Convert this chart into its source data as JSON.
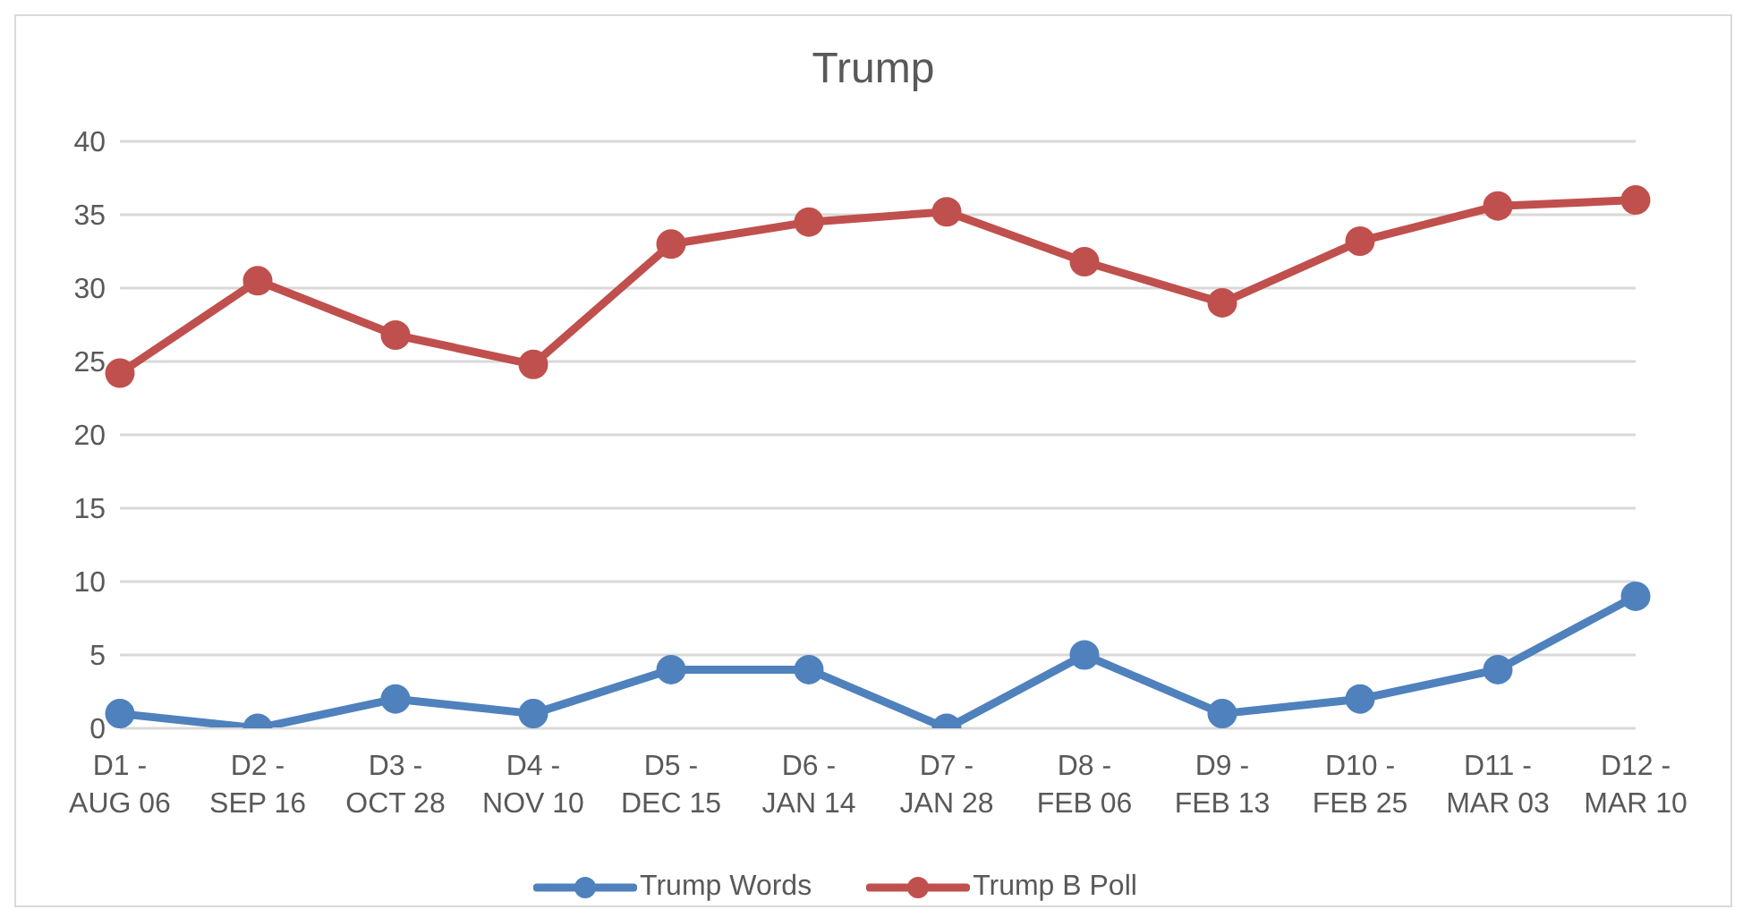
{
  "chart_data": {
    "type": "line",
    "title": "Trump",
    "categories": [
      "D1 - AUG 06",
      "D2 - SEP 16",
      "D3 - OCT 28",
      "D4 - NOV 10",
      "D5 - DEC 15",
      "D6 - JAN 14",
      "D7 - JAN 28",
      "D8 - FEB 06",
      "D9 - FEB 13",
      "D10 - FEB 25",
      "D11 - MAR 03",
      "D12 - MAR 10"
    ],
    "series": [
      {
        "name": "Trump Words",
        "color": "#4f81bd",
        "values": [
          1,
          0,
          2,
          1,
          4,
          4,
          0,
          5,
          1,
          2,
          4,
          9
        ]
      },
      {
        "name": "Trump B Poll",
        "color": "#c0504d",
        "values": [
          24.2,
          30.5,
          26.8,
          24.8,
          33,
          34.5,
          35.2,
          31.8,
          29,
          33.2,
          35.6,
          36
        ]
      }
    ],
    "ylim": [
      0,
      40
    ],
    "yticks": [
      0,
      5,
      10,
      15,
      20,
      25,
      30,
      35,
      40
    ],
    "grid": "y",
    "legend": "bottom",
    "marker": "circle",
    "line_style": "solid"
  }
}
